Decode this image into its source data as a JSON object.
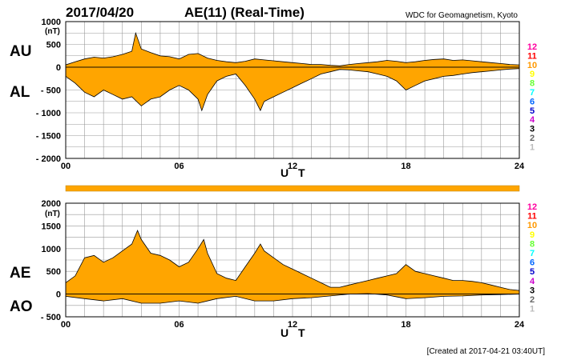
{
  "header": {
    "date": "2017/04/20",
    "title": "AE(11) (Real-Time)",
    "org": "WDC for Geomagnetism, Kyoto"
  },
  "footer": "[Created at 2017-04-21 03:40UT]",
  "station_counts": [
    "12",
    "11",
    "10",
    "9",
    "8",
    "7",
    "6",
    "5",
    "4",
    "3",
    "2",
    "1"
  ],
  "station_colors": [
    "#ff00a0",
    "#ff0000",
    "#ff9900",
    "#ffff00",
    "#66ff33",
    "#00ffff",
    "#0066ff",
    "#0000cc",
    "#cc00cc",
    "#000000",
    "#666666",
    "#bbbbbb"
  ],
  "colors": {
    "fill": "#ffa500",
    "outline": "#000000",
    "grid": "#999999",
    "bar": "#ffa500"
  },
  "chart_data": [
    {
      "type": "area",
      "panel": "AU/AL",
      "side_labels": [
        "AU",
        "AL"
      ],
      "unit_label": "(nT)",
      "ylim": [
        -2000,
        1000
      ],
      "yticks": [
        1000,
        500,
        0,
        -500,
        -1000,
        -1500,
        -2000
      ],
      "ytick_labels": [
        "1000",
        "500",
        "0",
        "- 500",
        "- 1000",
        "- 1500",
        "- 2000"
      ],
      "xlim": [
        0,
        24
      ],
      "xticks": [
        0,
        6,
        12,
        18,
        24
      ],
      "xtick_labels": [
        "00",
        "06",
        "12",
        "18",
        "24"
      ],
      "xlabel": "U T",
      "series": [
        {
          "name": "AU",
          "x": [
            0,
            0.5,
            1,
            1.5,
            2,
            2.5,
            3,
            3.5,
            3.7,
            4,
            4.5,
            5,
            5.5,
            6,
            6.5,
            7,
            7.5,
            8,
            8.5,
            9,
            9.5,
            10,
            10.5,
            11,
            11.5,
            12,
            12.5,
            13,
            13.5,
            14,
            14.5,
            15,
            15.5,
            16,
            16.5,
            17,
            17.5,
            18,
            18.5,
            19,
            19.5,
            20,
            20.5,
            21,
            21.5,
            22,
            22.5,
            23,
            23.5,
            24
          ],
          "y": [
            50,
            120,
            180,
            220,
            200,
            230,
            280,
            350,
            750,
            400,
            320,
            250,
            230,
            180,
            280,
            300,
            200,
            150,
            120,
            100,
            130,
            180,
            160,
            140,
            120,
            100,
            80,
            60,
            60,
            40,
            30,
            60,
            80,
            100,
            120,
            150,
            130,
            100,
            120,
            150,
            170,
            180,
            150,
            160,
            140,
            120,
            100,
            80,
            60,
            50
          ]
        },
        {
          "name": "AL",
          "x": [
            0,
            0.5,
            1,
            1.5,
            2,
            2.5,
            3,
            3.5,
            4,
            4.5,
            5,
            5.5,
            6,
            6.5,
            7,
            7.2,
            7.5,
            8,
            8.5,
            9,
            9.5,
            10,
            10.3,
            10.5,
            11,
            11.5,
            12,
            12.5,
            13,
            13.5,
            14,
            14.5,
            15,
            15.5,
            16,
            16.5,
            17,
            17.5,
            18,
            18.5,
            19,
            19.5,
            20,
            20.5,
            21,
            21.5,
            22,
            22.5,
            23,
            23.5,
            24
          ],
          "y": [
            -200,
            -350,
            -550,
            -650,
            -500,
            -600,
            -700,
            -650,
            -850,
            -700,
            -650,
            -500,
            -400,
            -500,
            -700,
            -950,
            -600,
            -300,
            -200,
            -150,
            -400,
            -700,
            -950,
            -750,
            -650,
            -550,
            -450,
            -350,
            -250,
            -150,
            -100,
            -50,
            -60,
            -80,
            -100,
            -150,
            -200,
            -300,
            -500,
            -400,
            -300,
            -250,
            -200,
            -180,
            -150,
            -120,
            -100,
            -80,
            -60,
            -40,
            -30
          ]
        }
      ]
    },
    {
      "type": "area",
      "panel": "AE/AO",
      "side_labels": [
        "AE",
        "AO"
      ],
      "unit_label": "(nT)",
      "ylim": [
        -500,
        2000
      ],
      "yticks": [
        2000,
        1500,
        1000,
        500,
        0,
        -500
      ],
      "ytick_labels": [
        "2000",
        "1500",
        "1000",
        "500",
        "0",
        "- 500"
      ],
      "xlim": [
        0,
        24
      ],
      "xticks": [
        0,
        6,
        12,
        18,
        24
      ],
      "xtick_labels": [
        "00",
        "06",
        "12",
        "18",
        "24"
      ],
      "xlabel": "U T",
      "series": [
        {
          "name": "AE",
          "x": [
            0,
            0.5,
            1,
            1.5,
            2,
            2.5,
            3,
            3.5,
            3.8,
            4,
            4.5,
            5,
            5.5,
            6,
            6.5,
            7,
            7.3,
            7.5,
            8,
            8.5,
            9,
            9.5,
            10,
            10.3,
            10.5,
            11,
            11.5,
            12,
            12.5,
            13,
            13.5,
            14,
            14.5,
            15,
            15.5,
            16,
            16.5,
            17,
            17.5,
            18,
            18.5,
            19,
            19.5,
            20,
            20.5,
            21,
            21.5,
            22,
            22.5,
            23,
            23.5,
            24
          ],
          "y": [
            250,
            400,
            800,
            850,
            700,
            800,
            950,
            1100,
            1400,
            1200,
            900,
            850,
            750,
            600,
            700,
            1000,
            1200,
            900,
            450,
            350,
            300,
            600,
            900,
            1100,
            950,
            800,
            650,
            550,
            450,
            350,
            250,
            150,
            150,
            200,
            250,
            300,
            350,
            400,
            450,
            650,
            500,
            450,
            400,
            350,
            300,
            300,
            280,
            250,
            200,
            150,
            100,
            80
          ]
        },
        {
          "name": "AO",
          "x": [
            0,
            1,
            2,
            3,
            4,
            5,
            6,
            7,
            8,
            9,
            10,
            11,
            12,
            13,
            14,
            15,
            16,
            17,
            18,
            19,
            20,
            21,
            22,
            23,
            24
          ],
          "y": [
            -50,
            -100,
            -150,
            -100,
            -200,
            -200,
            -150,
            -200,
            -100,
            -50,
            -150,
            -150,
            -100,
            -80,
            -40,
            0,
            10,
            -20,
            -100,
            -80,
            -50,
            -40,
            -20,
            -10,
            0
          ]
        }
      ]
    }
  ]
}
